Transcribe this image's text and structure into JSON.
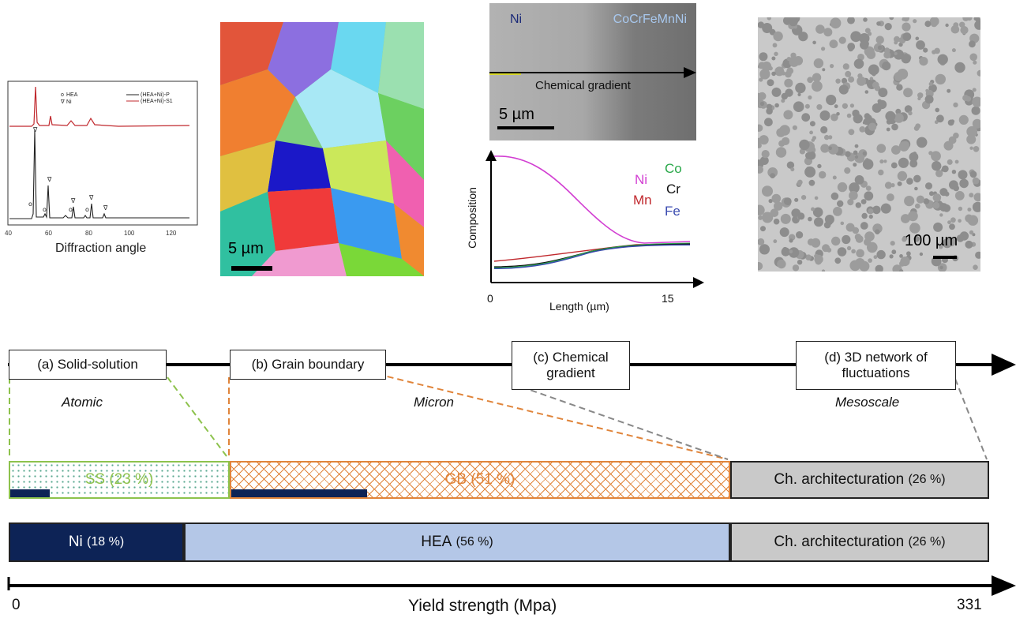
{
  "xrd": {
    "legend_symbols": [
      "HEA",
      "Ni"
    ],
    "legend_series": [
      "(HEA+Ni)-P",
      "(HEA+Ni)-S1"
    ],
    "x_ticks": [
      "40",
      "60",
      "80",
      "100",
      "120"
    ],
    "xlabel": "Diffraction angle",
    "colors": {
      "P": "#222222",
      "S1": "#c0282d"
    }
  },
  "ebsd": {
    "scale_label": "5 µm"
  },
  "sem": {
    "left_label": "Ni",
    "right_label": "CoCrFeMnNi",
    "arrow_label": "Chemical gradient",
    "scale_label": "5 µm"
  },
  "composition_plot": {
    "ylabel": "Composition",
    "xlabel": "Length (µm)",
    "x_ticks": [
      "0",
      "15"
    ],
    "elements": [
      {
        "name": "Ni",
        "color": "#d23fd2"
      },
      {
        "name": "Co",
        "color": "#2aa84a"
      },
      {
        "name": "Mn",
        "color": "#c0282d"
      },
      {
        "name": "Cr",
        "color": "#111111"
      },
      {
        "name": "Fe",
        "color": "#3a4bb0"
      }
    ]
  },
  "mesoscale_image": {
    "scale_label": "100 µm"
  },
  "mechanisms": [
    {
      "label": "(a) Solid-solution"
    },
    {
      "label": "(b) Grain boundary"
    },
    {
      "label": "(c) Chemical gradient"
    },
    {
      "label": "(d) 3D network of fluctuations"
    }
  ],
  "scales": [
    "Atomic",
    "Micron",
    "Mesoscale"
  ],
  "contribution_bar": {
    "ss": {
      "label": "SS",
      "pct": "(23 %)",
      "color": "#8dc24c"
    },
    "gb": {
      "label": "GB",
      "pct": "(51 %)",
      "color": "#e0843a"
    },
    "ch": {
      "label": "Ch. architecturation",
      "pct": "(26 %)",
      "color": "#c9c9c9"
    }
  },
  "composition_bar": {
    "ni": {
      "label": "Ni",
      "pct": "(18 %)",
      "color": "#0d2356"
    },
    "hea": {
      "label": "HEA",
      "pct": "(56 %)",
      "color": "#b4c7e7"
    },
    "ch": {
      "label": "Ch. architecturation",
      "pct": "(26 %)",
      "color": "#c9c9c9"
    }
  },
  "axis": {
    "label": "Yield strength (Mpa)",
    "min": "0",
    "max": "331"
  }
}
